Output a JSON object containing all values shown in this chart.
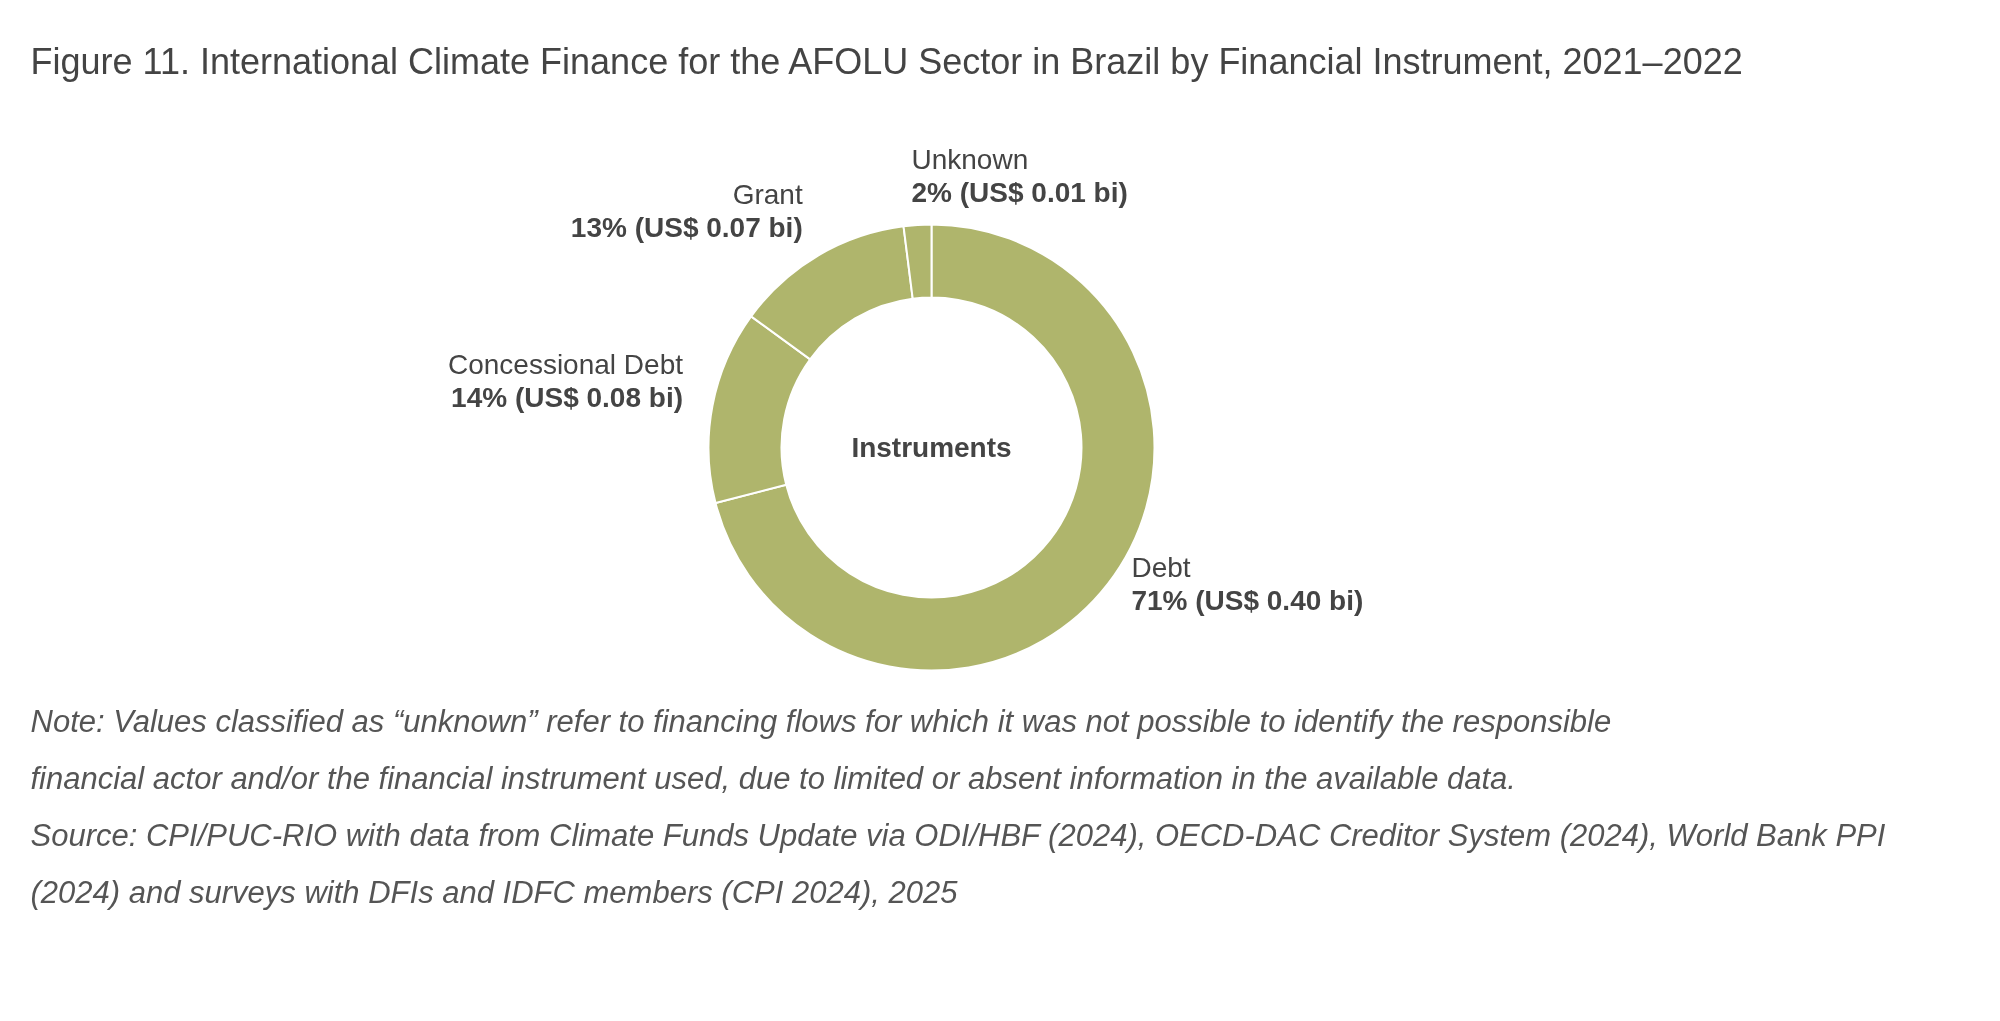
{
  "chart_data": {
    "type": "donut",
    "title": "Figure 11. International Climate Finance for the AFOLU Sector in Brazil by Financial Instrument, 2021–2022",
    "categories": [
      "Debt",
      "Concessional Debt",
      "Grant",
      "Unknown"
    ],
    "values": [
      71,
      14,
      13,
      2
    ],
    "value_labels": [
      "71% (US$ 0.40 bi)",
      "14% (US$ 0.08 bi)",
      "13% (US$ 0.07 bi)",
      "2% (US$ 0.01 bi)"
    ],
    "colors": [
      "#afb56c",
      "#afb56c",
      "#afb56c",
      "#afb56c"
    ],
    "annotations": [
      "Instruments",
      "Note: Values classified as “unknown” refer to financing flows for which it was not possible to identify the responsible financial actor and/or the financial instrument used, due to limited or absent information in the available data.",
      "Source: CPI/PUC-RIO with data from Climate Funds Update via ODI/HBF (2024), OECD-DAC Creditor System (2024), World Bank PPI (2024) and surveys with DFIs and IDFC members (CPI 2024), 2025"
    ]
  }
}
